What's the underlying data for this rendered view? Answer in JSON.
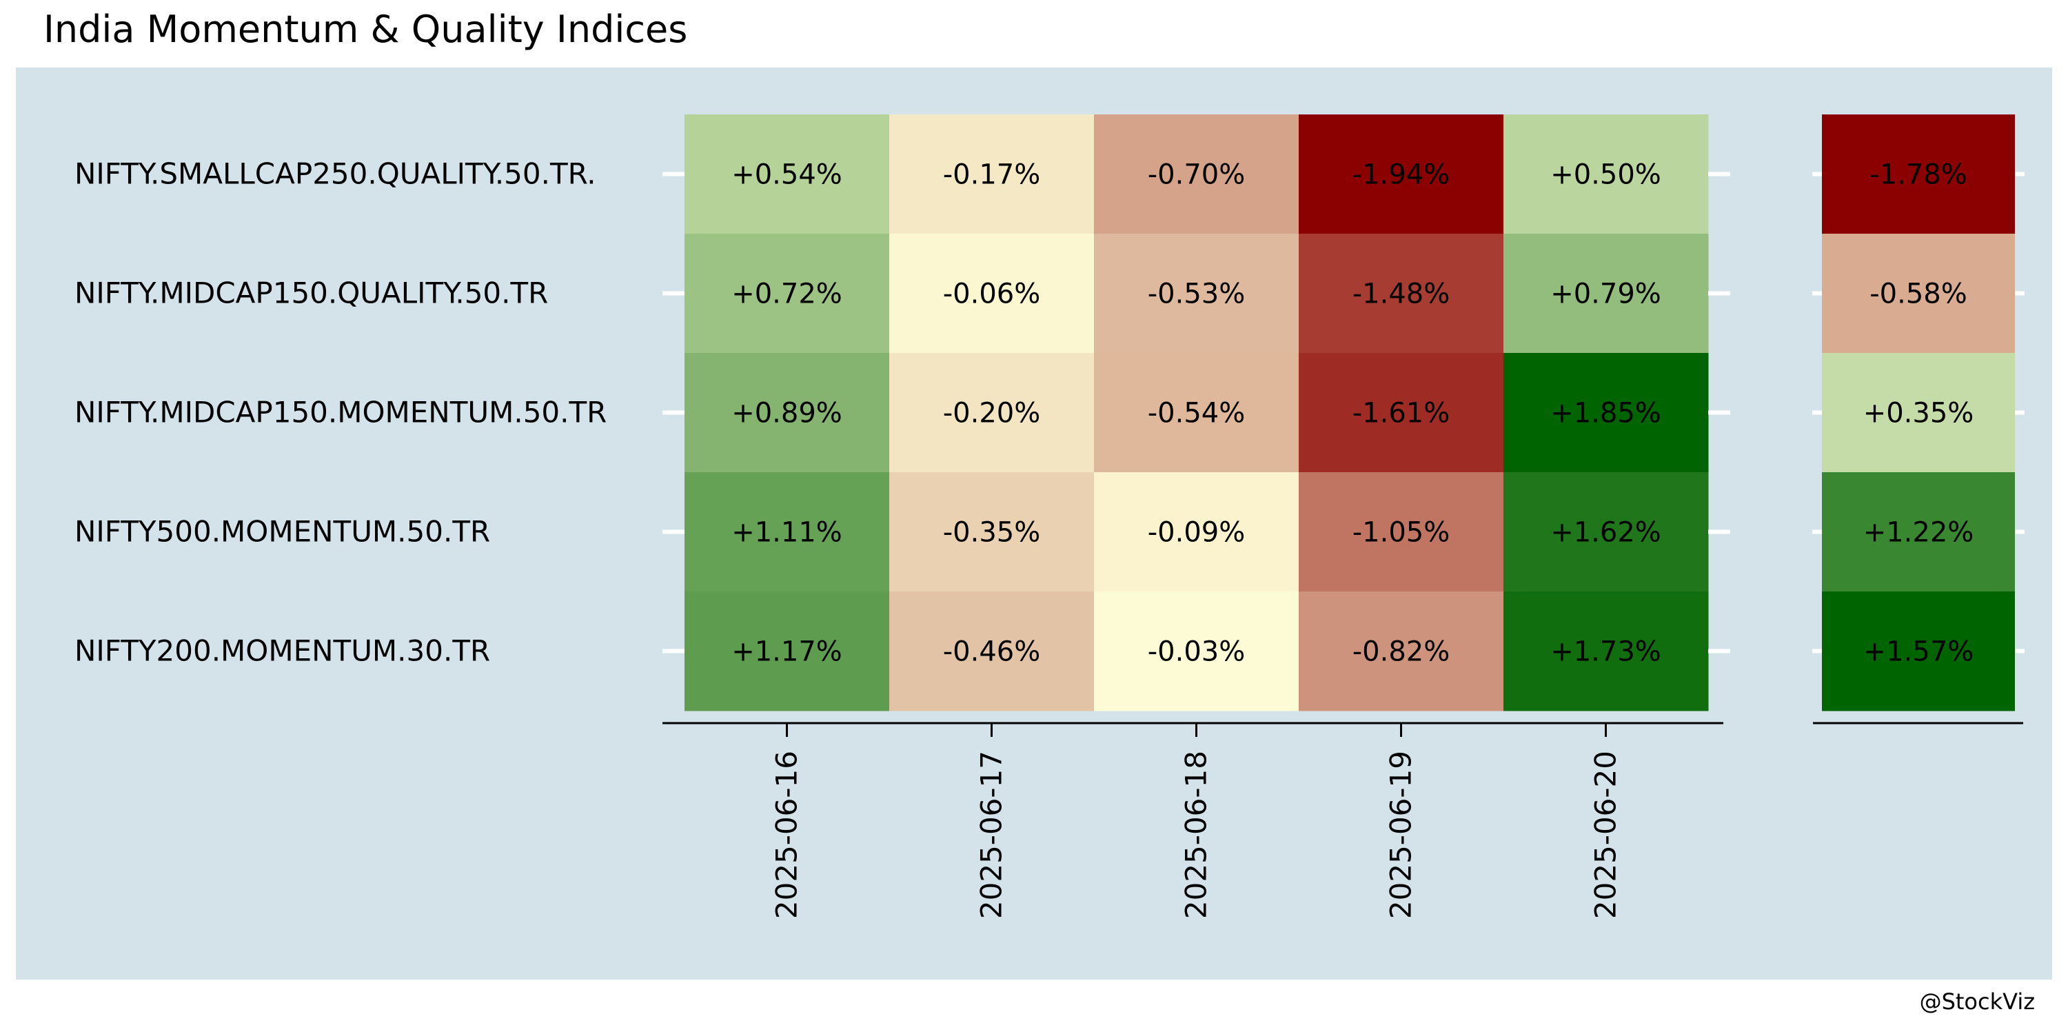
{
  "page": {
    "title": "India Momentum & Quality Indices",
    "credit": "@StockViz"
  },
  "chart_data": [
    {
      "type": "heatmap",
      "title": "India Momentum & Quality Indices",
      "x": [
        "2025-06-16",
        "2025-06-17",
        "2025-06-18",
        "2025-06-19",
        "2025-06-20"
      ],
      "y": [
        "NIFTY.SMALLCAP250.QUALITY.50.TR.",
        "NIFTY.MIDCAP150.QUALITY.50.TR",
        "NIFTY.MIDCAP150.MOMENTUM.50.TR",
        "NIFTY500.MOMENTUM.50.TR",
        "NIFTY200.MOMENTUM.30.TR"
      ],
      "values": [
        [
          0.54,
          -0.17,
          -0.7,
          -1.94,
          0.5
        ],
        [
          0.72,
          -0.06,
          -0.53,
          -1.48,
          0.79
        ],
        [
          0.89,
          -0.2,
          -0.54,
          -1.61,
          1.85
        ],
        [
          1.11,
          -0.35,
          -0.09,
          -1.05,
          1.62
        ],
        [
          1.17,
          -0.46,
          -0.03,
          -0.82,
          1.73
        ]
      ],
      "labels": [
        [
          "+0.54%",
          "-0.17%",
          "-0.70%",
          "-1.94%",
          "+0.50%"
        ],
        [
          "+0.72%",
          "-0.06%",
          "-0.53%",
          "-1.48%",
          "+0.79%"
        ],
        [
          "+0.89%",
          "-0.20%",
          "-0.54%",
          "-1.61%",
          "+1.85%"
        ],
        [
          "+1.11%",
          "-0.35%",
          "-0.09%",
          "-1.05%",
          "+1.62%"
        ],
        [
          "+1.17%",
          "-0.46%",
          "-0.03%",
          "-0.82%",
          "+1.73%"
        ]
      ],
      "color_scale": {
        "negative": "#8b0000",
        "zero": "#ffffd8",
        "positive": "#006400"
      }
    },
    {
      "type": "heatmap",
      "y": [
        "NIFTY.SMALLCAP250.QUALITY.50.TR.",
        "NIFTY.MIDCAP150.QUALITY.50.TR",
        "NIFTY.MIDCAP150.MOMENTUM.50.TR",
        "NIFTY500.MOMENTUM.50.TR",
        "NIFTY200.MOMENTUM.30.TR"
      ],
      "values": [
        -1.78,
        -0.58,
        0.35,
        1.22,
        1.57
      ],
      "labels": [
        "-1.78%",
        "-0.58%",
        "+0.35%",
        "+1.22%",
        "+1.57%"
      ],
      "color_scale": {
        "negative": "#8b0000",
        "zero": "#ffffd8",
        "positive": "#006400"
      }
    }
  ]
}
